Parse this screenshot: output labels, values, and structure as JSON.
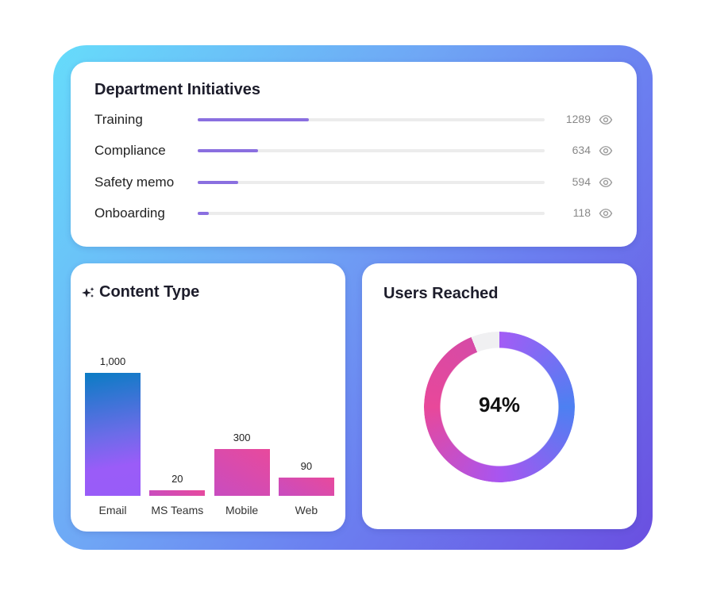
{
  "initiatives": {
    "title": "Department Initiatives",
    "items": [
      {
        "label": "Training",
        "value": "1289",
        "progress": 0.32
      },
      {
        "label": "Compliance",
        "value": "634",
        "progress": 0.174
      },
      {
        "label": "Safety memo",
        "value": "594",
        "progress": 0.117
      },
      {
        "label": "Onboarding",
        "value": "118",
        "progress": 0.032
      }
    ]
  },
  "content_type": {
    "title": "Content Type"
  },
  "users_reached": {
    "title": "Users Reached",
    "value": "94%",
    "fraction": 0.94
  },
  "chart_data": {
    "type": "bar",
    "title": "Content Type",
    "categories": [
      "Email",
      "MS Teams",
      "Mobile",
      "Web"
    ],
    "values": [
      1000,
      20,
      300,
      90
    ],
    "labels": [
      "1,000",
      "20",
      "300",
      "90"
    ],
    "xlabel": "",
    "ylabel": ""
  },
  "colors": {
    "accent": "#8a6fe0",
    "pink": "#e8489a",
    "blue": "#4d80f2"
  }
}
